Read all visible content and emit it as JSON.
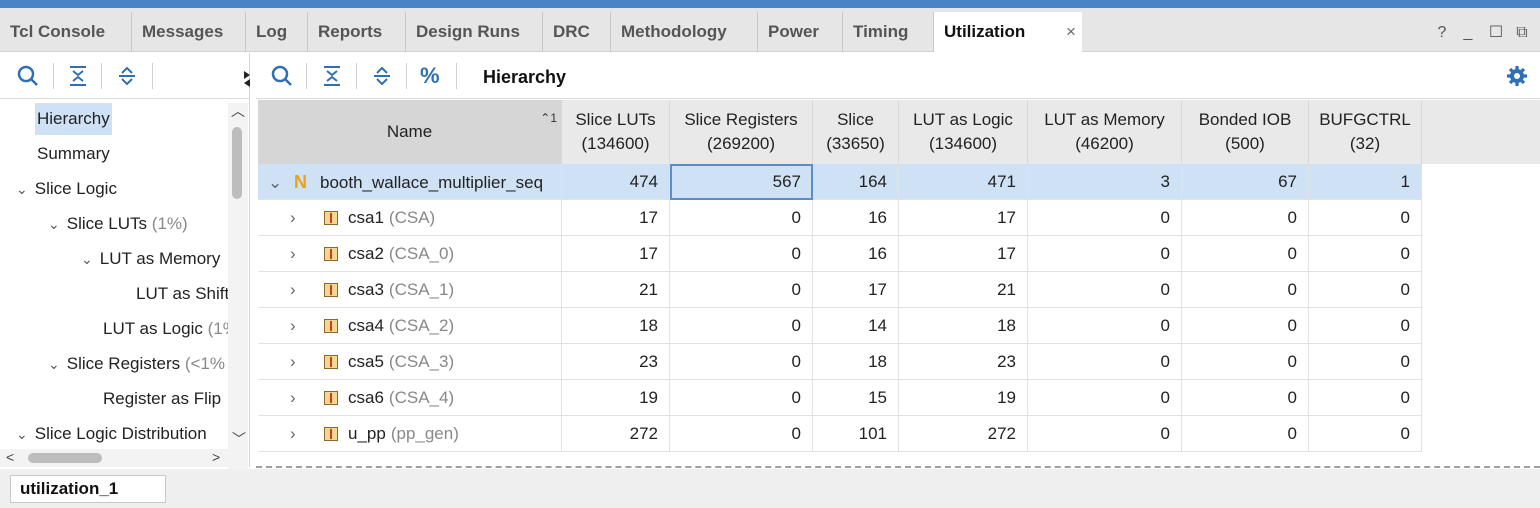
{
  "tabs": [
    {
      "label": "Tcl Console"
    },
    {
      "label": "Messages"
    },
    {
      "label": "Log"
    },
    {
      "label": "Reports"
    },
    {
      "label": "Design Runs"
    },
    {
      "label": "DRC"
    },
    {
      "label": "Methodology"
    },
    {
      "label": "Power"
    },
    {
      "label": "Timing"
    },
    {
      "label": "Utilization",
      "active": true
    }
  ],
  "window_controls": {
    "help": "?",
    "minimize": "_",
    "restore": "☐",
    "float": "⧉",
    "close_tab": "×"
  },
  "left_tree": [
    {
      "label": "Hierarchy",
      "selected": true
    },
    {
      "label": "Summary"
    },
    {
      "label": "Slice Logic",
      "chevron": "⌄"
    },
    {
      "label": "Slice LUTs",
      "muted": "(1%)",
      "chevron": "⌄"
    },
    {
      "label": "LUT as Memory",
      "chevron": "⌄"
    },
    {
      "label": "LUT as Shift"
    },
    {
      "label": "LUT as Logic",
      "muted": "(1%"
    },
    {
      "label": "Slice Registers",
      "muted": "(<1%",
      "chevron": "⌄"
    },
    {
      "label": "Register as Flip"
    },
    {
      "label": "Slice Logic Distribution",
      "chevron": "⌄"
    }
  ],
  "toolbar_right": {
    "title": "Hierarchy",
    "percent_label": "%"
  },
  "table": {
    "sort_index": "1",
    "columns": [
      {
        "title": "Name",
        "sub": ""
      },
      {
        "title": "Slice LUTs",
        "sub": "(134600)"
      },
      {
        "title": "Slice Registers",
        "sub": "(269200)"
      },
      {
        "title": "Slice",
        "sub": "(33650)"
      },
      {
        "title": "LUT as Logic",
        "sub": "(134600)"
      },
      {
        "title": "LUT as Memory",
        "sub": "(46200)"
      },
      {
        "title": "Bonded IOB",
        "sub": "(500)"
      },
      {
        "title": "BUFGCTRL",
        "sub": "(32)"
      }
    ],
    "rows": [
      {
        "icon": "N",
        "name": "booth_wallace_multiplier_seq",
        "module": "",
        "values": [
          "474",
          "567",
          "164",
          "471",
          "3",
          "67",
          "1"
        ],
        "selected": true,
        "expanded": true
      },
      {
        "icon": "inst",
        "name": "csa1",
        "module": "(CSA)",
        "values": [
          "17",
          "0",
          "16",
          "17",
          "0",
          "0",
          "0"
        ]
      },
      {
        "icon": "inst",
        "name": "csa2",
        "module": "(CSA_0)",
        "values": [
          "17",
          "0",
          "16",
          "17",
          "0",
          "0",
          "0"
        ]
      },
      {
        "icon": "inst",
        "name": "csa3",
        "module": "(CSA_1)",
        "values": [
          "21",
          "0",
          "17",
          "21",
          "0",
          "0",
          "0"
        ]
      },
      {
        "icon": "inst",
        "name": "csa4",
        "module": "(CSA_2)",
        "values": [
          "18",
          "0",
          "14",
          "18",
          "0",
          "0",
          "0"
        ]
      },
      {
        "icon": "inst",
        "name": "csa5",
        "module": "(CSA_3)",
        "values": [
          "23",
          "0",
          "18",
          "23",
          "0",
          "0",
          "0"
        ]
      },
      {
        "icon": "inst",
        "name": "csa6",
        "module": "(CSA_4)",
        "values": [
          "19",
          "0",
          "15",
          "19",
          "0",
          "0",
          "0"
        ]
      },
      {
        "icon": "inst",
        "name": "u_pp",
        "module": "(pp_gen)",
        "values": [
          "272",
          "0",
          "101",
          "272",
          "0",
          "0",
          "0"
        ]
      }
    ]
  },
  "bottom_tab": {
    "label": "utilization_1"
  },
  "colors": {
    "accent": "#4a83c6",
    "selection": "#cfe1f5",
    "netlist_icon": "#e8a317"
  }
}
